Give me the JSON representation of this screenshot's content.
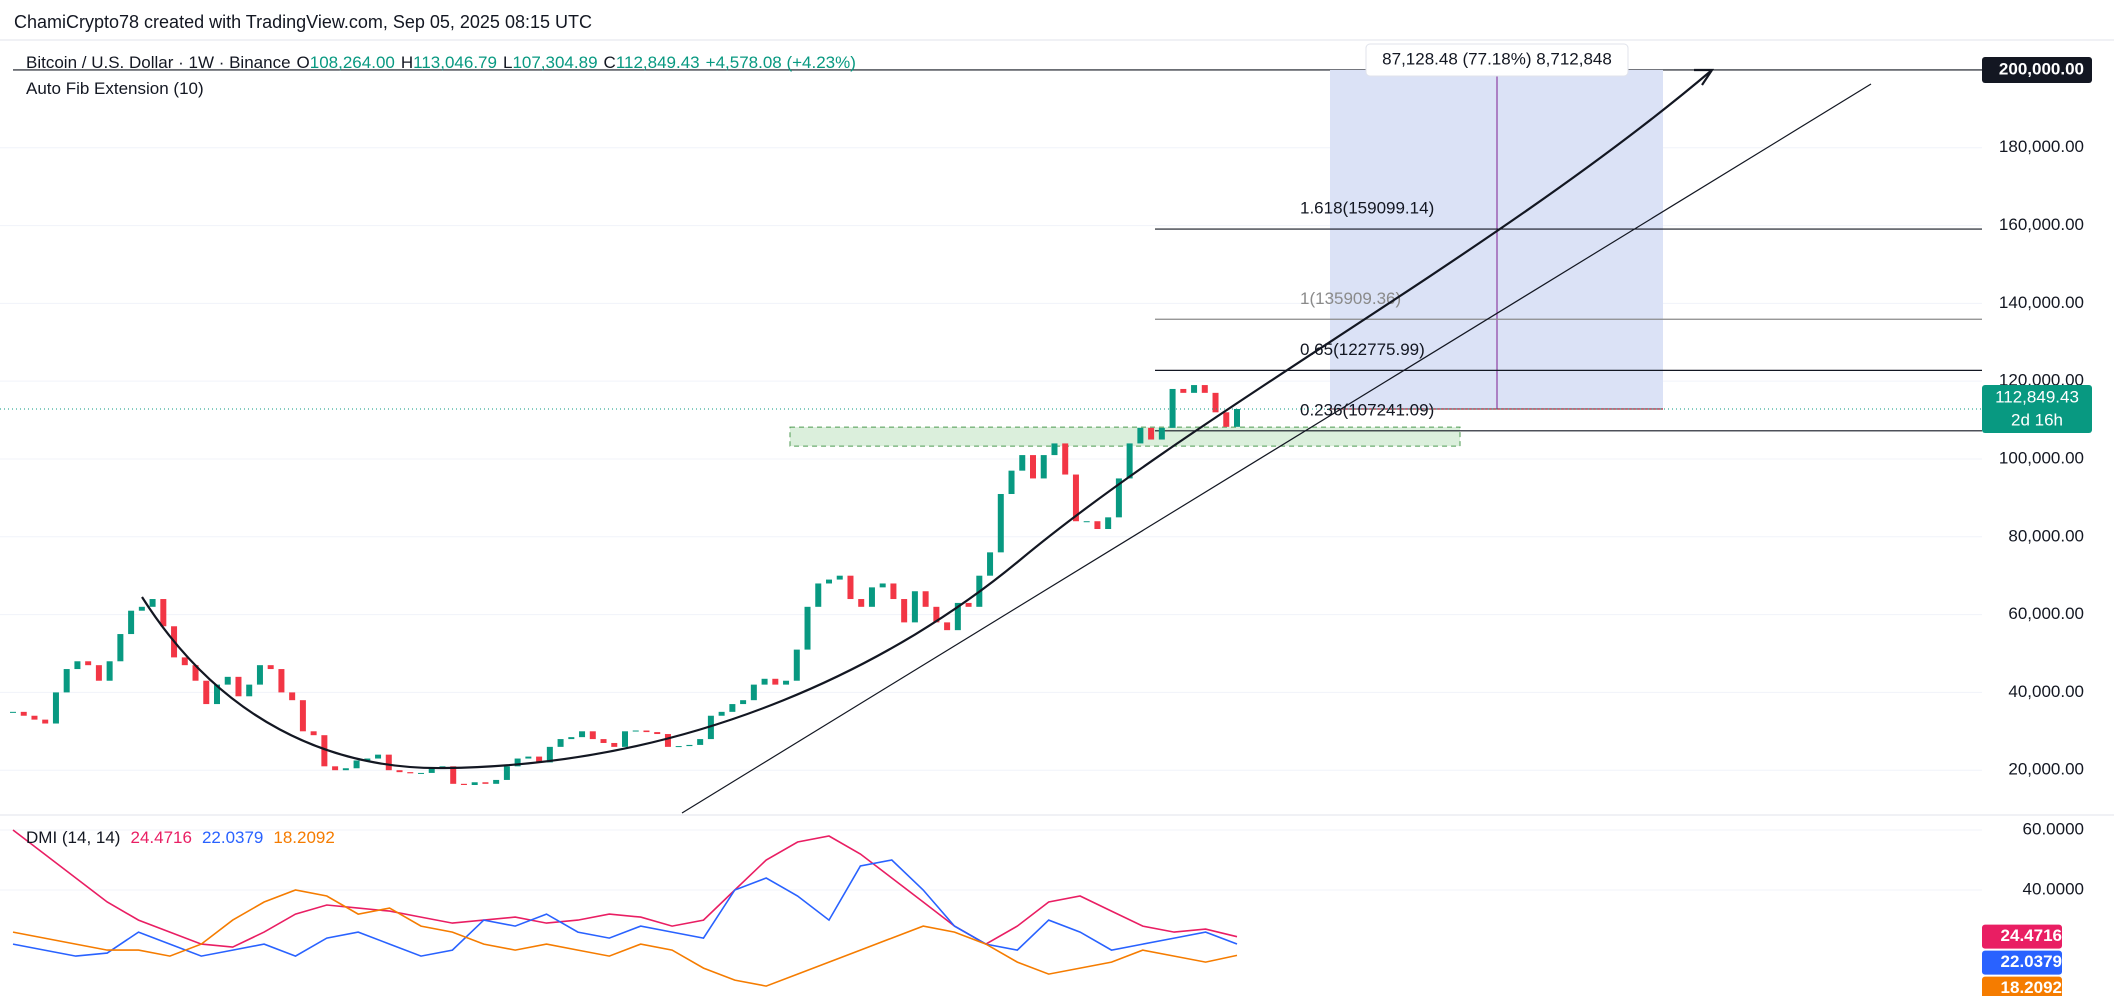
{
  "header": {
    "text": "ChamiCrypto78 created with TradingView.com, Sep 05, 2025 08:15 UTC"
  },
  "chart_data": [
    {
      "type": "candlestick",
      "title": "Bitcoin / U.S. Dollar · 1W · Binance",
      "ohlc": [
        {
          "key": "O",
          "value": "108,264.00"
        },
        {
          "key": "H",
          "value": "113,046.79"
        },
        {
          "key": "L",
          "value": "107,304.89"
        },
        {
          "key": "C",
          "value": "112,849.43"
        }
      ],
      "change": "+4,578.08 (+4.23%)",
      "indicator": "Auto Fib Extension (10)",
      "values": [
        35000,
        34000,
        33000,
        32000,
        40000,
        46000,
        48000,
        47000,
        43000,
        48000,
        55000,
        61000,
        62000,
        64000,
        57000,
        49000,
        47000,
        43000,
        37000,
        42000,
        44000,
        39000,
        42000,
        47000,
        46000,
        40000,
        38000,
        30000,
        29000,
        21000,
        20000,
        20500,
        22500,
        23000,
        24000,
        20000,
        19500,
        19200,
        19300,
        20500,
        21000,
        16500,
        16200,
        16900,
        16500,
        17500,
        21000,
        23000,
        23500,
        22000,
        26000,
        28000,
        28500,
        30000,
        28000,
        27000,
        26000,
        30000,
        30200,
        29800,
        29300,
        26000,
        26200,
        26500,
        28000,
        34000,
        35000,
        37000,
        38000,
        42000,
        43500,
        42000,
        43000,
        51000,
        62000,
        68000,
        69000,
        70000,
        64000,
        62000,
        67000,
        68000,
        64000,
        58000,
        66000,
        62000,
        58000,
        56000,
        63000,
        62000,
        70000,
        76000,
        91000,
        97000,
        101000,
        95000,
        101000,
        104000,
        96000,
        84000,
        84000,
        82000,
        85000,
        95000,
        104000,
        108000,
        105000,
        108000,
        118000,
        117000,
        119000,
        117000,
        112000,
        108264,
        112849.43
      ],
      "colors": {
        "up": "#089981",
        "down": "#f23645"
      },
      "ylim": [
        9000,
        207700
      ],
      "yticks": [
        {
          "value": 20000,
          "label": "20,000.00"
        },
        {
          "value": 40000,
          "label": "40,000.00"
        },
        {
          "value": 60000,
          "label": "60,000.00"
        },
        {
          "value": 80000,
          "label": "80,000.00"
        },
        {
          "value": 100000,
          "label": "100,000.00"
        },
        {
          "value": 120000,
          "label": "120,000.00"
        },
        {
          "value": 140000,
          "label": "140,000.00"
        },
        {
          "value": 160000,
          "label": "160,000.00"
        },
        {
          "value": 180000,
          "label": "180,000.00"
        },
        {
          "value": 200000,
          "label": "200,000.00"
        }
      ],
      "grid": true,
      "last_price": {
        "value": 112849.43,
        "label": "112,849.43",
        "countdown": "2d 16h"
      },
      "fib_levels": [
        {
          "value": 159099.14,
          "label": "1.618(159099.14)",
          "color": "#131722"
        },
        {
          "value": 135909.36,
          "label": "1(135909.36)",
          "color": "#8a8a8a"
        },
        {
          "value": 122775.99,
          "label": "0.65(122775.99)",
          "color": "#131722"
        },
        {
          "value": 107241.09,
          "label": "0.236(107241.09)",
          "color": "#131722"
        }
      ],
      "measure": {
        "from": 112849.43,
        "to": 200000,
        "label": "87,128.48 (77.18%) 8,712,848"
      },
      "zone": [
        103300,
        108200
      ]
    },
    {
      "type": "line",
      "title": "DMI (14, 14)",
      "series": [
        {
          "color": "#e91e63",
          "values": [
            60,
            52,
            44,
            36,
            30,
            26,
            22,
            21,
            26,
            32,
            35,
            34,
            33,
            31,
            29,
            30,
            31,
            29,
            30,
            32,
            31,
            28,
            30,
            40,
            50,
            56,
            58,
            52,
            44,
            36,
            28,
            22,
            28,
            36,
            38,
            33,
            28,
            26,
            27,
            24.4716
          ]
        },
        {
          "color": "#2962ff",
          "values": [
            22,
            20,
            18,
            19,
            26,
            22,
            18,
            20,
            22,
            18,
            24,
            26,
            22,
            18,
            20,
            30,
            28,
            32,
            26,
            24,
            28,
            26,
            24,
            40,
            44,
            38,
            30,
            48,
            50,
            40,
            28,
            22,
            20,
            30,
            26,
            20,
            22,
            24,
            26,
            22.0379
          ]
        },
        {
          "color": "#f57c00",
          "values": [
            26,
            24,
            22,
            20,
            20,
            18,
            22,
            30,
            36,
            40,
            38,
            32,
            34,
            28,
            26,
            22,
            20,
            22,
            20,
            18,
            22,
            20,
            14,
            10,
            8,
            12,
            16,
            20,
            24,
            28,
            26,
            22,
            16,
            12,
            14,
            16,
            20,
            18,
            16,
            18.2092
          ]
        }
      ],
      "ylim": [
        4.7,
        64
      ],
      "yticks": [
        {
          "value": 40,
          "label": "40.0000"
        },
        {
          "value": 60,
          "label": "60.0000"
        }
      ],
      "grid": true
    }
  ]
}
